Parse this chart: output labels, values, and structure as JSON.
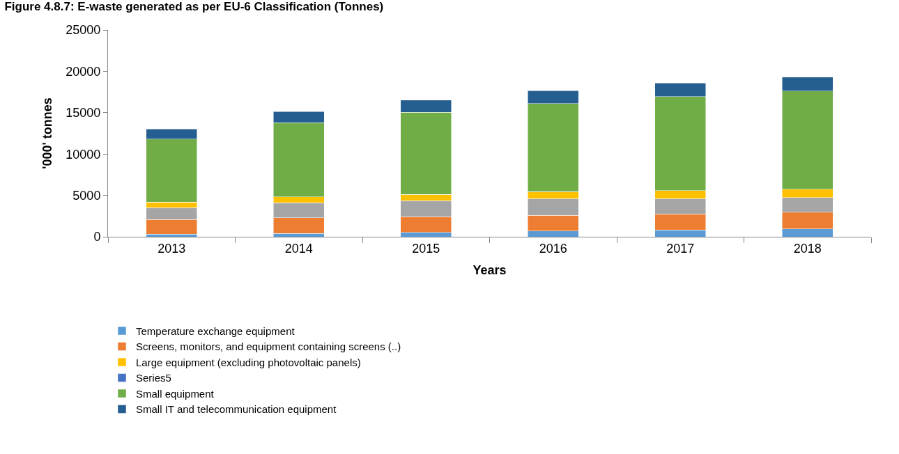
{
  "chart_data": {
    "type": "bar",
    "stacked": true,
    "title": "Figure 4.8.7: E-waste generated as per EU-6 Classification (Tonnes)",
    "xlabel": "Years",
    "ylabel": "'000' tonnes",
    "categories": [
      "2013",
      "2014",
      "2015",
      "2016",
      "2017",
      "2018"
    ],
    "series": [
      {
        "name": "Temperature exchange equipment",
        "color": "#5b9bd5",
        "values": [
          320,
          390,
          520,
          680,
          840,
          940
        ]
      },
      {
        "name": "Screens, monitors, and equipment containing screens (..)",
        "color": "#ed7d31",
        "values": [
          1750,
          1910,
          1910,
          1910,
          1910,
          2010
        ]
      },
      {
        "color": "#a5a5a5",
        "values": [
          1430,
          1810,
          1910,
          2010,
          1880,
          1770
        ]
      },
      {
        "name": "Large equipment (excluding photovoltaic panels)",
        "color": "#ffc000",
        "values": [
          670,
          710,
          770,
          840,
          940,
          1010
        ]
      },
      {
        "name": "Series5",
        "color": "#4472c4",
        "values": [
          0,
          0,
          0,
          0,
          0,
          0
        ]
      },
      {
        "name": "Small equipment",
        "color": "#70ad47",
        "values": [
          7640,
          8970,
          9940,
          10640,
          11360,
          11880
        ]
      },
      {
        "name": "Small IT and telecommunication equipment",
        "color": "#255e91",
        "values": [
          1230,
          1360,
          1450,
          1590,
          1650,
          1680
        ]
      }
    ],
    "ylim": [
      0,
      25000
    ],
    "yticks": [
      0,
      5000,
      10000,
      15000,
      20000,
      25000
    ],
    "grid": false,
    "legend": "bottom"
  }
}
